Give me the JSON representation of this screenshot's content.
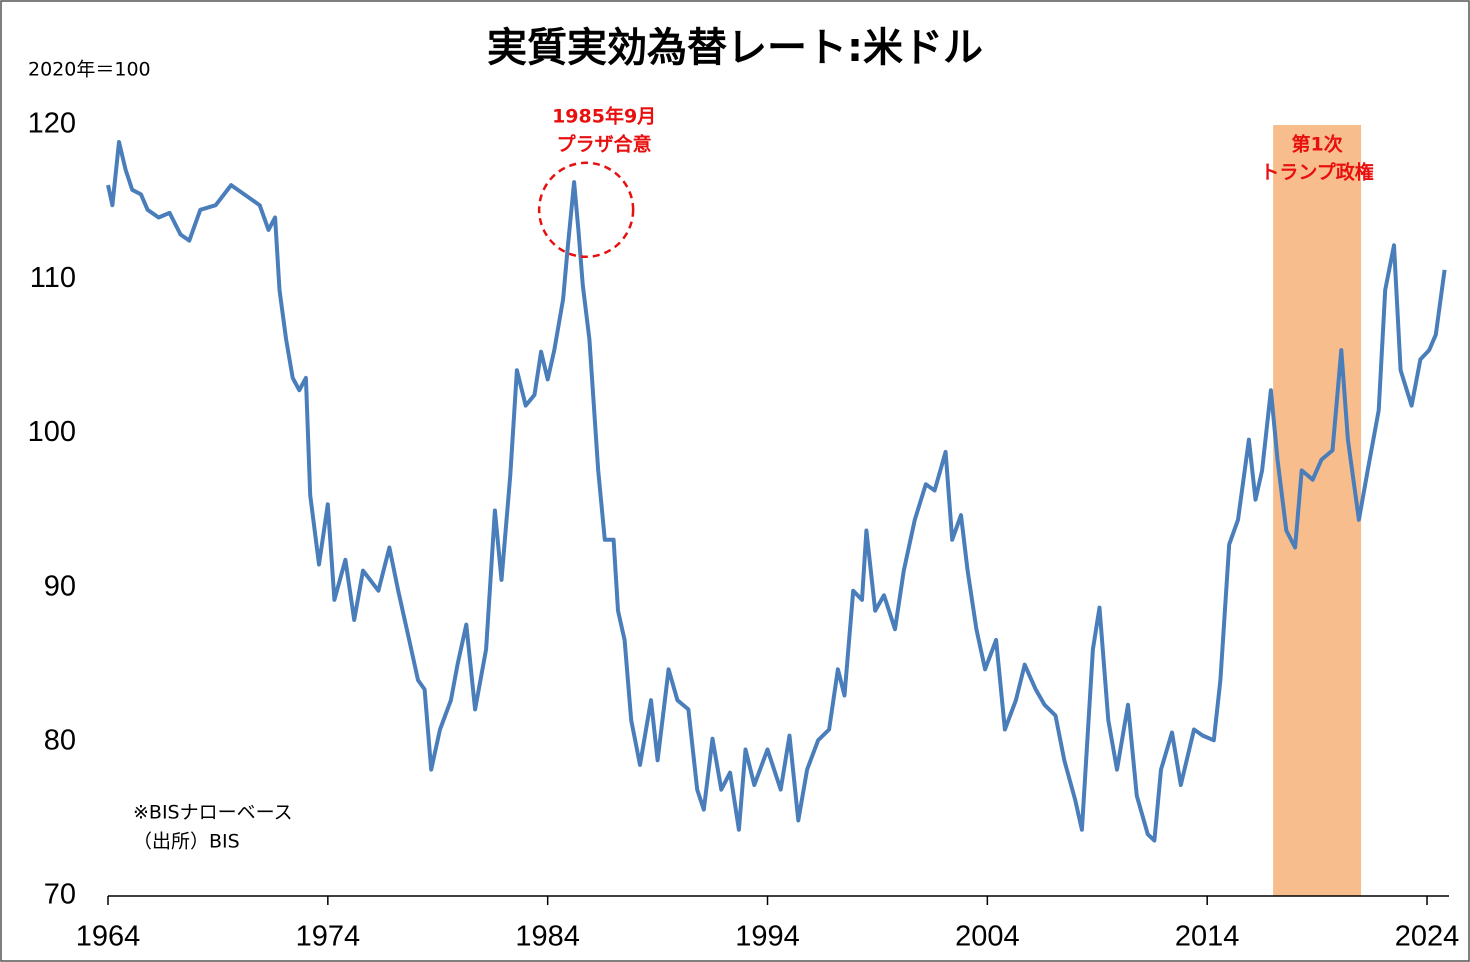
{
  "chart_data": {
    "type": "line",
    "title": "実質実効為替レート:米ドル",
    "y_label": "2020年＝100",
    "notes": [
      "※BISナローベース",
      "（出所）BIS"
    ],
    "color": "#4a7ebb",
    "xlim": [
      1964,
      2025
    ],
    "xticks": [
      1964,
      1974,
      1984,
      1994,
      2004,
      2014,
      2024
    ],
    "ylim": [
      70,
      120
    ],
    "yticks": [
      70,
      80,
      90,
      100,
      110,
      120
    ],
    "shade": {
      "x": [
        2017,
        2021
      ],
      "color": "#f8bd8c",
      "label": [
        "第1次",
        "トランプ政権"
      ]
    },
    "annotation": {
      "x": 1985.75,
      "y": 114.5,
      "label": [
        "1985年9月",
        "プラザ合意"
      ]
    },
    "x": [
      1964.0,
      1964.2,
      1964.5,
      1964.8,
      1965.1,
      1965.5,
      1965.8,
      1966.3,
      1966.8,
      1967.3,
      1967.7,
      1968.2,
      1968.9,
      1969.6,
      1970.2,
      1970.9,
      1971.3,
      1971.6,
      1971.8,
      1972.1,
      1972.4,
      1972.7,
      1973.0,
      1973.2,
      1973.6,
      1974.0,
      1974.3,
      1974.8,
      1975.2,
      1975.6,
      1976.3,
      1976.8,
      1977.2,
      1977.7,
      1978.1,
      1978.4,
      1978.7,
      1979.1,
      1979.6,
      1979.9,
      1980.3,
      1980.7,
      1981.2,
      1981.6,
      1981.9,
      1982.3,
      1982.6,
      1983.0,
      1983.4,
      1983.7,
      1984.0,
      1984.3,
      1984.7,
      1984.9,
      1985.2,
      1985.4,
      1985.6,
      1985.9,
      1986.3,
      1986.6,
      1987.0,
      1987.2,
      1987.5,
      1987.8,
      1988.2,
      1988.7,
      1989.0,
      1989.5,
      1989.9,
      1990.4,
      1990.8,
      1991.1,
      1991.5,
      1991.9,
      1992.3,
      1992.7,
      1993.0,
      1993.4,
      1994.0,
      1994.6,
      1995.0,
      1995.4,
      1995.8,
      1996.3,
      1996.8,
      1997.2,
      1997.5,
      1997.9,
      1998.3,
      1998.5,
      1998.9,
      1999.3,
      1999.8,
      2000.2,
      2000.7,
      2001.2,
      2001.6,
      2002.1,
      2002.4,
      2002.8,
      2003.1,
      2003.5,
      2003.9,
      2004.4,
      2004.8,
      2005.3,
      2005.7,
      2006.2,
      2006.6,
      2007.1,
      2007.5,
      2008.0,
      2008.3,
      2008.8,
      2009.1,
      2009.5,
      2009.9,
      2010.4,
      2010.8,
      2011.3,
      2011.6,
      2011.9,
      2012.4,
      2012.8,
      2013.4,
      2013.8,
      2014.3,
      2014.6,
      2015.0,
      2015.4,
      2015.9,
      2016.2,
      2016.5,
      2016.9,
      2017.2,
      2017.6,
      2018.0,
      2018.3,
      2018.8,
      2019.2,
      2019.7,
      2020.1,
      2020.4,
      2020.9,
      2021.3,
      2021.8,
      2022.1,
      2022.5,
      2022.8,
      2023.3,
      2023.7,
      2024.1,
      2024.4,
      2024.8
    ],
    "values": [
      116.1,
      114.8,
      118.9,
      117.1,
      115.8,
      115.5,
      114.5,
      114.0,
      114.3,
      112.9,
      112.5,
      114.5,
      114.8,
      116.1,
      115.5,
      114.8,
      113.2,
      114.0,
      109.3,
      106.1,
      103.6,
      102.8,
      103.6,
      96.0,
      91.5,
      95.4,
      89.2,
      91.8,
      87.9,
      91.1,
      89.8,
      92.6,
      89.8,
      86.6,
      84.0,
      83.4,
      78.2,
      80.8,
      82.7,
      85.0,
      87.6,
      82.1,
      86.0,
      95.0,
      90.5,
      97.3,
      104.1,
      101.8,
      102.5,
      105.3,
      103.5,
      105.4,
      108.7,
      111.9,
      116.3,
      113.2,
      109.6,
      106.1,
      97.6,
      93.1,
      93.1,
      88.5,
      86.6,
      81.4,
      78.5,
      82.7,
      78.8,
      84.7,
      82.7,
      82.1,
      76.9,
      75.6,
      80.2,
      76.9,
      78.0,
      74.3,
      79.5,
      77.2,
      79.5,
      76.9,
      80.4,
      74.9,
      78.2,
      80.1,
      80.8,
      84.7,
      83.0,
      89.8,
      89.2,
      93.7,
      88.5,
      89.5,
      87.3,
      91.1,
      94.4,
      96.7,
      96.3,
      98.8,
      93.1,
      94.7,
      91.1,
      87.3,
      84.7,
      86.6,
      80.8,
      82.7,
      85.0,
      83.4,
      82.4,
      81.7,
      78.8,
      76.2,
      74.3,
      86.0,
      88.7,
      81.4,
      78.2,
      82.4,
      76.5,
      74.0,
      73.6,
      78.2,
      80.6,
      77.2,
      80.8,
      80.4,
      80.1,
      84.0,
      92.8,
      94.4,
      99.6,
      95.7,
      97.6,
      102.8,
      98.3,
      93.7,
      92.6,
      97.6,
      97.0,
      98.3,
      98.9,
      105.4,
      99.6,
      94.4,
      97.6,
      101.5,
      109.3,
      112.2,
      104.1,
      101.8,
      104.8,
      105.4,
      106.4,
      110.6
    ]
  }
}
